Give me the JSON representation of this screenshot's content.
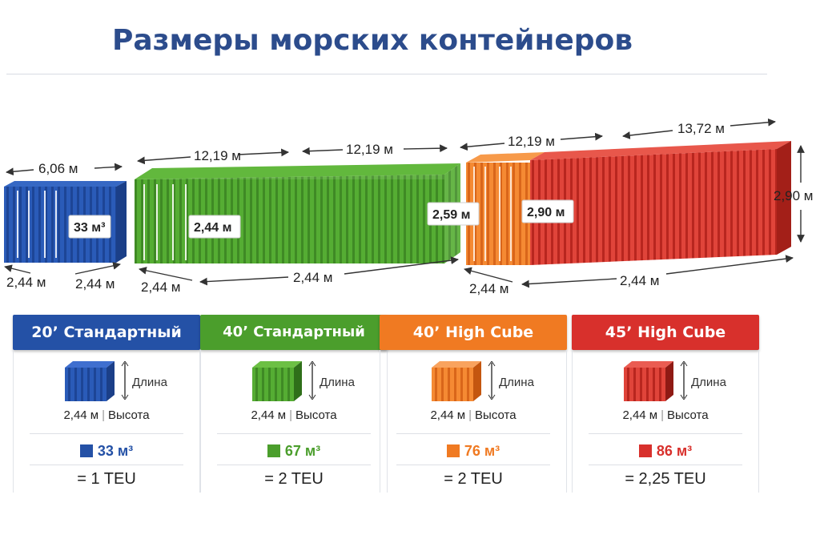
{
  "title": "Размеры морских контейнеров",
  "colors": {
    "blue": "#2451a6",
    "green": "#4b9e2c",
    "orange": "#f07a22",
    "red": "#d8302c",
    "title": "#2c4c8c"
  },
  "diagram": {
    "c20": {
      "length": "6,06 м",
      "width_left": "2,44 м",
      "width_right": "2,44 м",
      "volume_label": "33 м³"
    },
    "c40": {
      "length_a": "12,19 м",
      "length_b": "12,19 м",
      "height_label": "2,44 м",
      "width": "2,44 м",
      "depth": "2,44 м",
      "side_label": "2,59 м"
    },
    "c40hc": {
      "length": "12,19 м",
      "height_label": "2,90 м",
      "width": "2,44 м",
      "depth": "2,44 м"
    },
    "c45hc": {
      "length": "13,72 м",
      "height_right": "2,90 м"
    }
  },
  "cards": [
    {
      "name": "20’ Стандартный",
      "length_label": "Длина",
      "width": "2,44 м",
      "height_label": "Высота",
      "volume": "33 м³",
      "teu": "= 1 TEU",
      "color": "#2451a6"
    },
    {
      "name": "40’ Стандартный",
      "length_label": "Длина",
      "width": "2,44 м",
      "height_label": "Высота",
      "volume": "67 м³",
      "teu": "= 2 TEU",
      "color": "#4b9e2c"
    },
    {
      "name": "40’ High Cube",
      "length_label": "Длина",
      "width": "2,44 м",
      "height_label": "Высота",
      "volume": "76 м³",
      "teu": "= 2 TEU",
      "color": "#f07a22"
    },
    {
      "name": "45’ High Cube",
      "length_label": "Длина",
      "width": "2,44 м",
      "height_label": "Высота",
      "volume": "86 м³",
      "teu": "= 2,25 TEU",
      "color": "#d8302c"
    }
  ]
}
